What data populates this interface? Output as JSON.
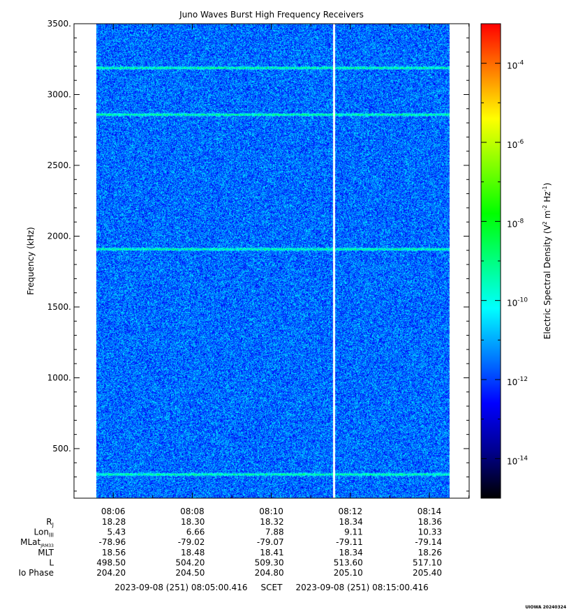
{
  "chart_data": {
    "type": "heatmap",
    "title": "Juno Waves Burst High Frequency Receivers",
    "ylabel": "Frequency (kHz)",
    "ylim": [
      150,
      3500
    ],
    "y_ticks": [
      "500.",
      "1000.",
      "1500.",
      "2000.",
      "2500.",
      "3000.",
      "3500."
    ],
    "y_tick_values": [
      500,
      1000,
      1500,
      2000,
      2500,
      3000,
      3500
    ],
    "x_range": [
      "08:05:00.416",
      "08:15:00.416"
    ],
    "x_ticks": [
      "08:06",
      "08:08",
      "08:10",
      "08:12",
      "08:14"
    ],
    "data_start": "08:05:45",
    "data_end": "08:14:38",
    "gap_time": "08:11:35",
    "emission_lines_khz": [
      3190,
      2860,
      1910,
      320
    ],
    "background_log10_density": -12,
    "colorbar": {
      "label_main": "Electric Spectral Density (V",
      "label_sup1": "2",
      "label_mid1": " m",
      "label_sup2": "-2",
      "label_mid2": " Hz",
      "label_sup3": "-1",
      "label_end": ")",
      "range_log10": [
        -15,
        -3
      ],
      "tick_exponents": [
        "-4",
        "-6",
        "-8",
        "-10",
        "-12",
        "-14"
      ],
      "tick_values": [
        -4,
        -6,
        -8,
        -10,
        -12,
        -14
      ],
      "colors": [
        "#000000",
        "#00008f",
        "#0000ff",
        "#0080ff",
        "#00ffff",
        "#00ff80",
        "#00ff00",
        "#80ff00",
        "#ffff00",
        "#ff8000",
        "#ff0000"
      ]
    },
    "ephemeris": {
      "rows": [
        {
          "label": "R",
          "sub": "J",
          "values": [
            "18.28",
            "18.30",
            "18.32",
            "18.34",
            "18.36"
          ]
        },
        {
          "label": "Lon",
          "sub": "III",
          "values": [
            "5.43",
            "6.66",
            "7.88",
            "9.11",
            "10.33"
          ]
        },
        {
          "label": "MLat",
          "sub": "JRM33",
          "values": [
            "-78.96",
            "-79.02",
            "-79.07",
            "-79.11",
            "-79.14"
          ]
        },
        {
          "label": "MLT",
          "sub": "",
          "values": [
            "18.56",
            "18.48",
            "18.41",
            "18.34",
            "18.26"
          ]
        },
        {
          "label": "L",
          "sub": "",
          "values": [
            "498.50",
            "504.20",
            "509.30",
            "513.60",
            "517.10"
          ]
        },
        {
          "label": "Io Phase",
          "sub": "",
          "values": [
            "204.20",
            "204.50",
            "204.80",
            "205.10",
            "205.40"
          ]
        }
      ]
    },
    "footer": "2023-09-08 (251) 08:05:00.416     SCET     2023-09-08 (251) 08:15:00.416",
    "credit": "UIOWA 20240324"
  }
}
